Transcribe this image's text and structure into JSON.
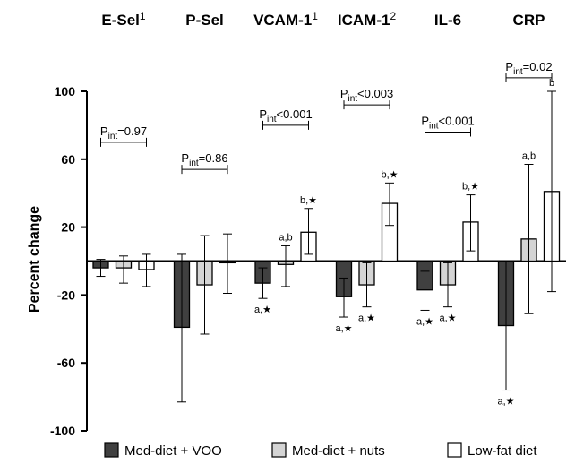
{
  "chart_data": {
    "type": "bar",
    "ylabel": "Percent change",
    "ylim": [
      -100,
      100
    ],
    "yticks": [
      100,
      60,
      20,
      -20,
      -60,
      -100
    ],
    "grid": false,
    "legend_position": "bottom",
    "categories": [
      {
        "name": "E-Sel",
        "sup": "1"
      },
      {
        "name": "P-Sel",
        "sup": ""
      },
      {
        "name": "VCAM-1",
        "sup": "1"
      },
      {
        "name": "ICAM-1",
        "sup": "2"
      },
      {
        "name": "IL-6",
        "sup": ""
      },
      {
        "name": "CRP",
        "sup": ""
      }
    ],
    "series": [
      {
        "name": "Med-diet + VOO",
        "color": "#404040",
        "values": [
          -4,
          -39,
          -13,
          -21,
          -17,
          -38
        ],
        "err_low": [
          -9,
          -83,
          -22,
          -33,
          -29,
          -76
        ],
        "err_high": [
          1,
          4,
          -4,
          -10,
          -6,
          0
        ],
        "labels": [
          "",
          "",
          "a,★",
          "a,★",
          "a,★",
          "a,★"
        ]
      },
      {
        "name": "Med-diet + nuts",
        "color": "#d4d4d4",
        "values": [
          -4,
          -14,
          -2,
          -14,
          -14,
          13
        ],
        "err_low": [
          -13,
          -43,
          -15,
          -27,
          -27,
          -31
        ],
        "err_high": [
          3,
          15,
          9,
          -1,
          -1,
          57
        ],
        "labels": [
          "",
          "",
          "a,b",
          "a,★",
          "a,★",
          "a,b"
        ]
      },
      {
        "name": "Low-fat diet",
        "color": "#ffffff",
        "values": [
          -5,
          -1,
          17,
          34,
          23,
          41
        ],
        "err_low": [
          -15,
          -19,
          4,
          21,
          6,
          -18
        ],
        "err_high": [
          4,
          16,
          31,
          46,
          39,
          100
        ],
        "labels": [
          "",
          "",
          "b,★",
          "b,★",
          "b,★",
          "b"
        ]
      }
    ],
    "interaction_p": [
      {
        "prefix": "P",
        "sub": "int",
        "value": "=0.97"
      },
      {
        "prefix": "P",
        "sub": "int",
        "value": "=0.86"
      },
      {
        "prefix": "P",
        "sub": "int",
        "value": "<0.001"
      },
      {
        "prefix": "P",
        "sub": "int",
        "value": "<0.003"
      },
      {
        "prefix": "P",
        "sub": "int",
        "value": "<0.001"
      },
      {
        "prefix": "P",
        "sub": "int",
        "value": "=0.02"
      }
    ],
    "interaction_p_level": [
      70,
      54,
      80,
      92,
      76,
      108
    ]
  }
}
